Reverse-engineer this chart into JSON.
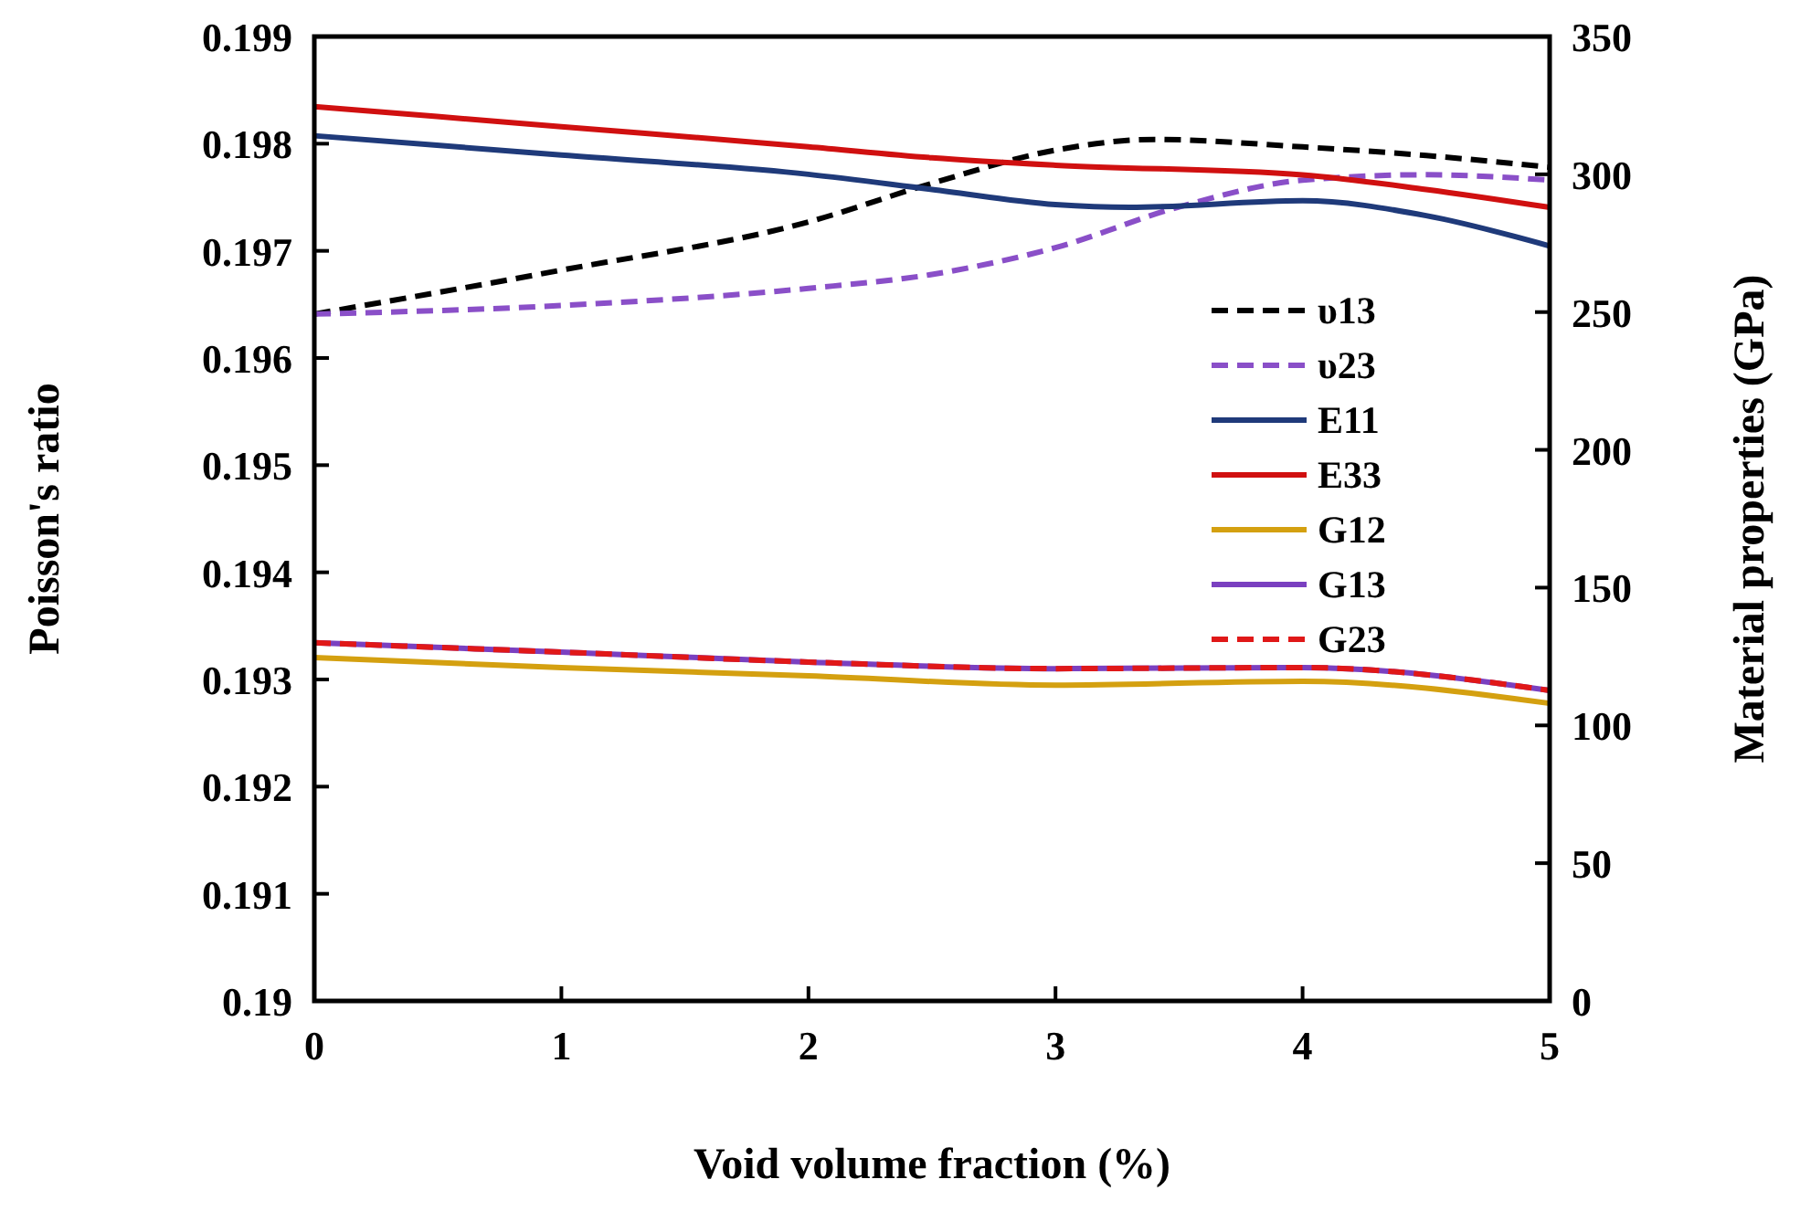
{
  "chart_data": {
    "type": "line",
    "xlabel": "Void volume fraction (%)",
    "ylabel": "Poisson's ratio",
    "y2label": "Material properties (GPa)",
    "xlim": [
      0,
      5
    ],
    "xticks": [
      0,
      1,
      2,
      3,
      4,
      5
    ],
    "ylim": [
      0.19,
      0.199
    ],
    "yticks": [
      0.19,
      0.191,
      0.192,
      0.193,
      0.194,
      0.195,
      0.196,
      0.197,
      0.198,
      0.199
    ],
    "y2lim": [
      0,
      350
    ],
    "y2ticks": [
      0,
      50,
      100,
      150,
      200,
      250,
      300,
      350
    ],
    "legend": "right",
    "grid": false,
    "marker": "none",
    "series": [
      {
        "name": "υ13",
        "color": "#000000",
        "line_style": "dashed",
        "x": [
          0,
          1,
          2,
          2.5,
          3,
          3.4,
          4,
          4.5,
          5
        ],
        "values": [
          0.19641,
          0.19682,
          0.19727,
          0.19763,
          0.19794,
          0.19804,
          0.19797,
          0.19789,
          0.19778
        ]
      },
      {
        "name": "υ23",
        "color": "#8a4fc8",
        "line_style": "dashed",
        "x": [
          0,
          1,
          2,
          2.5,
          3,
          3.5,
          4,
          4.5,
          5
        ],
        "values": [
          0.19641,
          0.19649,
          0.19665,
          0.19678,
          0.19703,
          0.19741,
          0.19766,
          0.19771,
          0.19766
        ]
      },
      {
        "name": "E11",
        "color": "#1f3a7a",
        "line_style": "solid",
        "axis": "y2",
        "x": [
          0,
          1,
          2,
          2.5,
          3,
          3.3,
          4,
          4.5,
          5
        ],
        "values": [
          314,
          307,
          300,
          294.5,
          289,
          288,
          290.4,
          285,
          274
        ]
      },
      {
        "name": "E33",
        "color": "#d01010",
        "line_style": "solid",
        "axis": "y2",
        "x": [
          0,
          1,
          2,
          2.5,
          3,
          4,
          4.5,
          5
        ],
        "values": [
          324.6,
          317.3,
          310,
          306,
          303.3,
          299.8,
          294.5,
          288
        ]
      },
      {
        "name": "G12",
        "color": "#d4a010",
        "line_style": "solid",
        "axis": "y2",
        "x": [
          0,
          1,
          2,
          3,
          4,
          5
        ],
        "values": [
          124.6,
          121,
          118,
          114.6,
          116,
          108
        ]
      },
      {
        "name": "G13",
        "color": "#7a40c0",
        "line_style": "solid",
        "axis": "y2",
        "x": [
          0,
          1,
          2,
          3,
          4,
          5
        ],
        "values": [
          130,
          126.6,
          123,
          120.6,
          121,
          112.7
        ]
      },
      {
        "name": "G23",
        "color": "#e01818",
        "line_style": "dashed",
        "axis": "y2",
        "x": [
          0,
          1,
          2,
          3,
          4,
          5
        ],
        "values": [
          130,
          126.6,
          123,
          120.6,
          121,
          112.7
        ]
      }
    ]
  }
}
